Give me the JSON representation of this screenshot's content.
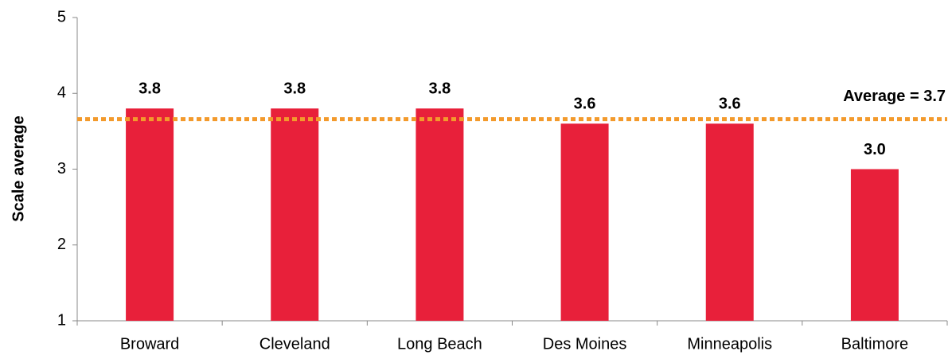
{
  "chart_data": {
    "type": "bar",
    "y_label": "Scale average",
    "categories": [
      "Broward",
      "Cleveland",
      "Long Beach",
      "Des Moines",
      "Minneapolis",
      "Baltimore"
    ],
    "values": [
      3.8,
      3.8,
      3.8,
      3.6,
      3.6,
      3.0
    ],
    "value_labels": [
      "3.8",
      "3.8",
      "3.8",
      "3.6",
      "3.6",
      "3.0"
    ],
    "color": "#e8203a",
    "ylim": [
      1,
      5
    ],
    "yticks": [
      1,
      2,
      3,
      4,
      5
    ],
    "grid": false,
    "reference_line": {
      "label": "Average = 3.7",
      "value": 3.66,
      "color": "#f39a2c"
    }
  }
}
